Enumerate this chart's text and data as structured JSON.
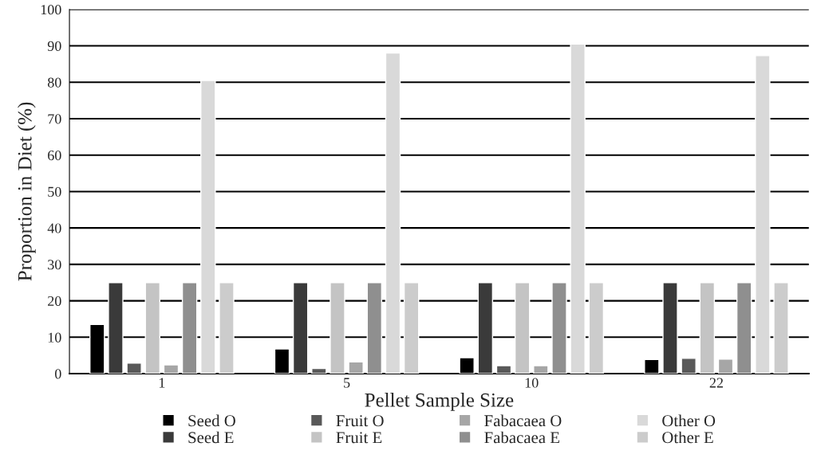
{
  "chart_data": {
    "type": "bar",
    "xlabel": "Pellet Sample Size",
    "ylabel": "Proportion in Diet (%)",
    "categories": [
      "1",
      "5",
      "10",
      "22"
    ],
    "series": [
      {
        "name": "Seed O",
        "color": "#000000",
        "values": [
          13.5,
          6.8,
          4.4,
          3.9
        ]
      },
      {
        "name": "Seed E",
        "color": "#3a3a3a",
        "values": [
          25,
          25,
          25,
          25
        ]
      },
      {
        "name": "Fruit O",
        "color": "#595959",
        "values": [
          2.9,
          1.4,
          2.2,
          4.2
        ]
      },
      {
        "name": "Fruit E",
        "color": "#c4c4c4",
        "values": [
          25,
          25,
          25,
          25
        ]
      },
      {
        "name": "Fabacaea O",
        "color": "#a6a6a6",
        "values": [
          2.4,
          3.2,
          2.2,
          4.0
        ]
      },
      {
        "name": "Fabacaea E",
        "color": "#8f8f8f",
        "values": [
          25,
          25,
          25,
          25
        ]
      },
      {
        "name": "Other O",
        "color": "#d9d9d9",
        "values": [
          80.5,
          88,
          90.5,
          87.3
        ]
      },
      {
        "name": "Other E",
        "color": "#cccccc",
        "values": [
          25,
          25,
          25,
          25
        ]
      }
    ],
    "ylim": [
      0,
      100
    ],
    "yticks": [
      0,
      10,
      20,
      30,
      40,
      50,
      60,
      70,
      80,
      90,
      100
    ],
    "grid": "y",
    "legend": "bottom"
  }
}
